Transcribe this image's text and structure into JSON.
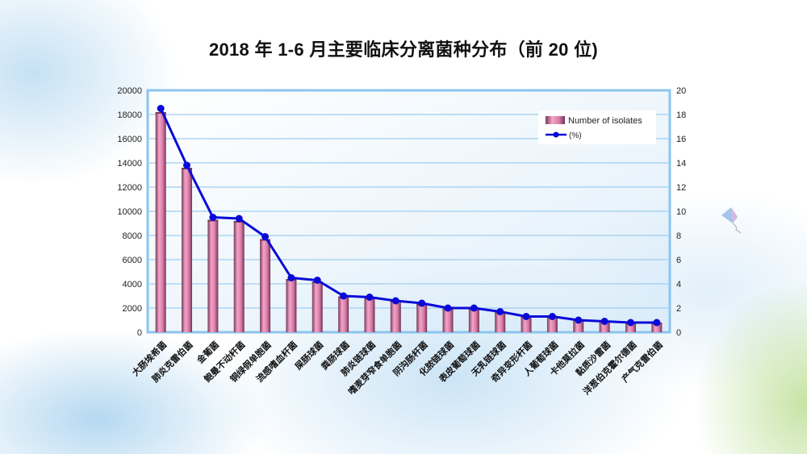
{
  "slide": {
    "title": "2018 年 1-6 月主要临床分离菌种分布（前 20 位)"
  },
  "legend": {
    "bar_label": "Number of isolates",
    "line_label": "(%)"
  },
  "colors": {
    "bar": "#d97aa6",
    "bar_dark": "#7a3a5a",
    "line": "#0a0ad8",
    "axis": "#8cc4ee",
    "grid": "#9fcdf0"
  },
  "chart_data": {
    "type": "bar+line",
    "title": "2018 年 1-6 月主要临床分离菌种分布（前 20 位)",
    "xlabel": "",
    "ylabel": "Number of isolates",
    "y2label": "(%)",
    "ylim": [
      0,
      20000
    ],
    "y2lim": [
      0,
      20
    ],
    "yticks": [
      0,
      2000,
      4000,
      6000,
      8000,
      10000,
      12000,
      14000,
      16000,
      18000,
      20000
    ],
    "y2ticks": [
      0,
      2,
      4,
      6,
      8,
      10,
      12,
      14,
      16,
      18,
      20
    ],
    "grid": true,
    "legend_position": "upper right",
    "categories": [
      "大肠埃希菌",
      "肺炎克雷伯菌",
      "金葡菌",
      "鲍曼不动杆菌",
      "铜绿假单胞菌",
      "流感嗜血杆菌",
      "屎肠球菌",
      "粪肠球菌",
      "肺炎链球菌",
      "嗜麦芽窄食单胞菌",
      "阴沟肠杆菌",
      "化脓链球菌",
      "表皮葡萄球菌",
      "无乳链球菌",
      "奇异变形杆菌",
      "人葡萄球菌",
      "卡他莫拉菌",
      "黏质沙雷菌",
      "洋葱伯克霍尔德菌",
      "产气克雷伯菌"
    ],
    "series": [
      {
        "name": "Number of isolates",
        "type": "bar",
        "values": [
          18200,
          13600,
          9300,
          9200,
          7700,
          4400,
          4200,
          2950,
          2850,
          2600,
          2350,
          1950,
          1950,
          1700,
          1300,
          1300,
          1050,
          950,
          800,
          800
        ]
      },
      {
        "name": "(%)",
        "type": "line",
        "axis": "right",
        "values": [
          18.5,
          13.8,
          9.5,
          9.4,
          7.9,
          4.5,
          4.3,
          3.0,
          2.9,
          2.6,
          2.4,
          2.0,
          2.0,
          1.7,
          1.3,
          1.3,
          1.0,
          0.9,
          0.8,
          0.8
        ]
      }
    ]
  }
}
